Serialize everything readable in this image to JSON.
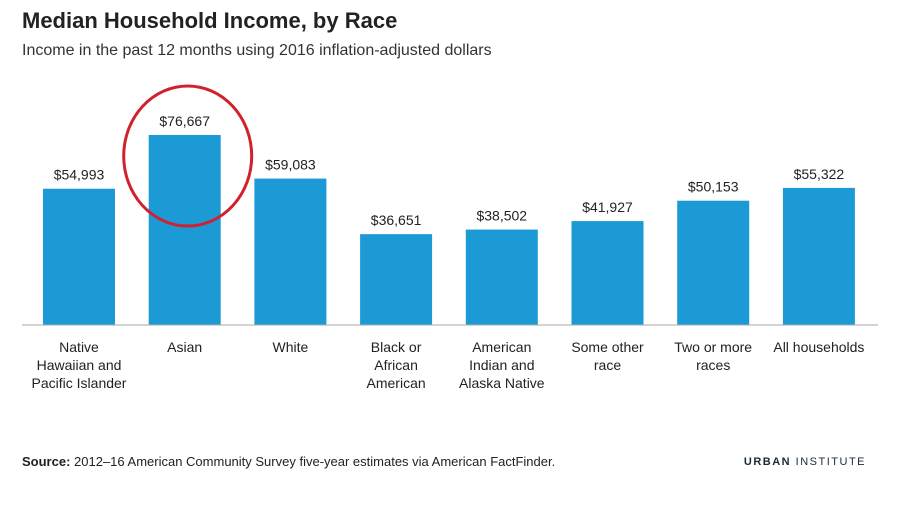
{
  "header": {
    "title": "Median Household Income, by Race",
    "subtitle": "Income in the past 12 months using 2016 inflation-adjusted dollars"
  },
  "footer": {
    "source_label": "Source:",
    "source_text": " 2012–16 American Community Survey five-year estimates via American FactFinder.",
    "brand_urban": "URBAN",
    "brand_institute": " INSTITUTE"
  },
  "colors": {
    "bar": "#1b9ad6",
    "highlight_circle": "#d0212d",
    "axis": "#aaaaaa",
    "label": "#222222"
  },
  "chart_data": {
    "type": "bar",
    "title": "Median Household Income, by Race",
    "subtitle": "Income in the past 12 months using 2016 inflation-adjusted dollars",
    "categories": [
      "Native Hawaiian and Pacific Islander",
      "Asian",
      "White",
      "Black or African American",
      "American Indian and Alaska Native",
      "Some other race",
      "Two or more races",
      "All households"
    ],
    "category_label_lines": [
      [
        "Native",
        "Hawaiian and",
        "Pacific Islander"
      ],
      [
        "Asian"
      ],
      [
        "White"
      ],
      [
        "Black or",
        "African",
        "American"
      ],
      [
        "American",
        "Indian and",
        "Alaska Native"
      ],
      [
        "Some other",
        "race"
      ],
      [
        "Two or more",
        "races"
      ],
      [
        "All households"
      ]
    ],
    "values": [
      54993,
      76667,
      59083,
      36651,
      38502,
      41927,
      50153,
      55322
    ],
    "value_labels": [
      "$54,993",
      "$76,667",
      "$59,083",
      "$36,651",
      "$38,502",
      "$41,927",
      "$50,153",
      "$55,322"
    ],
    "highlighted_index": 1,
    "ylim": [
      0,
      80000
    ],
    "grid": false,
    "legend": "none"
  }
}
